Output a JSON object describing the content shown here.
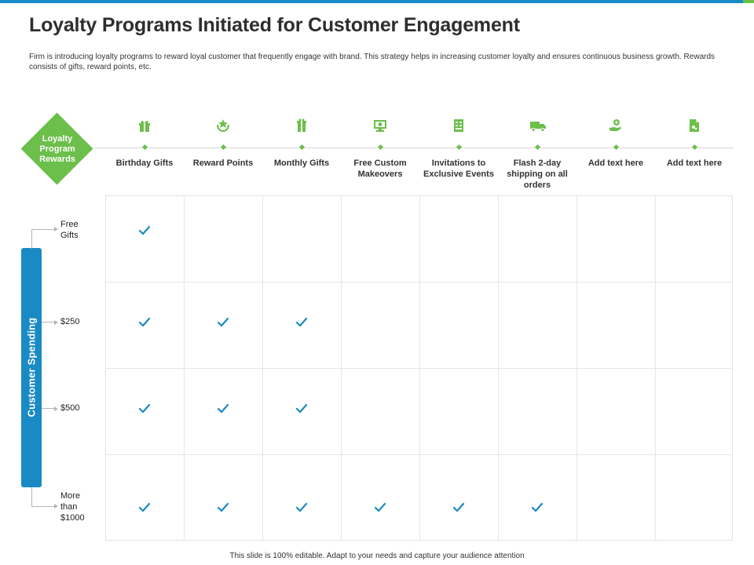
{
  "colors": {
    "accent_blue": "#1a8ac4",
    "accent_green": "#6bbf4a",
    "check": "#1a8ac4"
  },
  "title": "Loyalty Programs Initiated for Customer Engagement",
  "subtitle": "Firm is introducing loyalty programs to reward loyal customer that frequently engage with brand. This strategy helps in increasing customer loyalty and ensures continuous business growth.  Rewards consists of gifts, reward points, etc.",
  "diamond_label": "Loyalty Program Rewards",
  "columns": [
    {
      "label": "Birthday Gifts",
      "icon": "gift-icon"
    },
    {
      "label": "Reward Points",
      "icon": "star-hands-icon"
    },
    {
      "label": "Monthly Gifts",
      "icon": "gift-box-icon"
    },
    {
      "label": "Free Custom Makeovers",
      "icon": "monitor-icon"
    },
    {
      "label": "Invitations to Exclusive Events",
      "icon": "invitation-icon"
    },
    {
      "label": "Flash 2-day shipping on all orders",
      "icon": "truck-icon"
    },
    {
      "label": "Add text here",
      "icon": "hand-gear-icon"
    },
    {
      "label": "Add text here",
      "icon": "document-icon"
    }
  ],
  "side_label": "Customer Spending",
  "rows": [
    {
      "label": "Free Gifts",
      "checks": [
        true,
        false,
        false,
        false,
        false,
        false,
        false,
        false
      ]
    },
    {
      "label": "$250",
      "checks": [
        true,
        true,
        true,
        false,
        false,
        false,
        false,
        false
      ]
    },
    {
      "label": "$500",
      "checks": [
        true,
        true,
        true,
        false,
        false,
        false,
        false,
        false
      ]
    },
    {
      "label": "More than $1000",
      "checks": [
        true,
        true,
        true,
        true,
        true,
        true,
        false,
        false
      ]
    }
  ],
  "footer": "This slide is 100% editable.  Adapt to your needs and capture your audience attention"
}
